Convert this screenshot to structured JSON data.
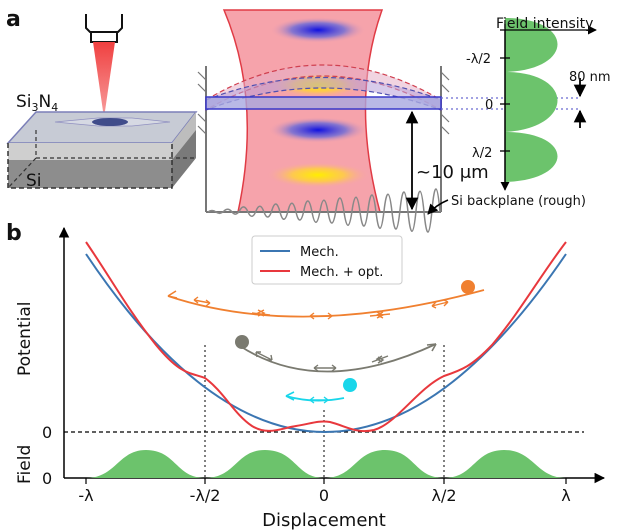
{
  "panel_a": {
    "label": "a",
    "material_label_si3n4_base": "Si",
    "material_label_si3n4_sub": "3",
    "material_label_n": "N",
    "material_label_n_sub": "4",
    "material_label_si": "Si",
    "field_intensity_title": "Field intensity",
    "tick_neg_half_lambda": "-λ/2",
    "tick_zero": "0",
    "tick_half_lambda": "λ/2",
    "gap_label": "80 nm",
    "distance_label": "~10 μm",
    "backplane_label": "Si backplane (rough)"
  },
  "panel_b": {
    "label": "b",
    "legend": {
      "mech": "Mech.",
      "mech_opt": "Mech. + opt."
    },
    "ylabel_potential": "Potential",
    "ylabel_field": "Field",
    "ytick_zero_potential": "0",
    "ytick_zero_field": "0",
    "xlabel": "Displacement",
    "xticks": [
      "-λ",
      "-λ/2",
      "0",
      "λ/2",
      "λ"
    ]
  },
  "colors": {
    "mech": "#3b76b2",
    "mech_opt": "#e8383d",
    "field_fill": "#6cc36c",
    "orange": "#f08030",
    "gray": "#7a7a70",
    "cyan": "#19d6ea"
  }
}
